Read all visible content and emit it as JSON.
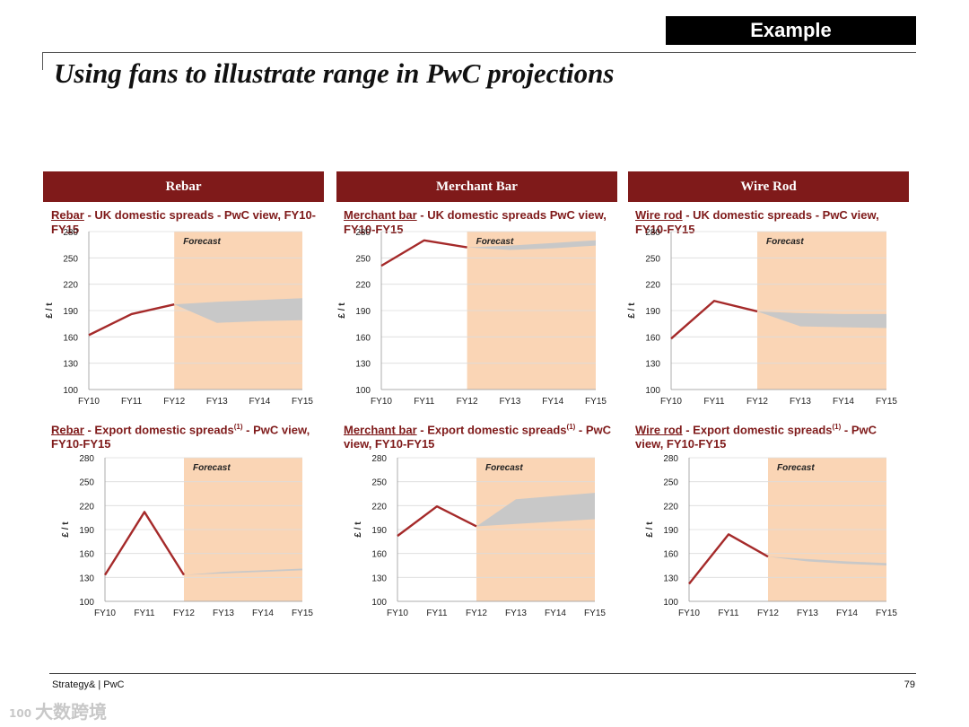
{
  "badge": "Example",
  "title": "Using fans to illustrate range in PwC projections",
  "panels": [
    {
      "header": "Rebar"
    },
    {
      "header": "Merchant Bar"
    },
    {
      "header": "Wire Rod"
    }
  ],
  "footer": {
    "left": "Strategy& | PwC",
    "page": "79"
  },
  "watermark": {
    "logo": "100",
    "text": "大数跨境"
  },
  "colors": {
    "header_bg": "#7f1a1a",
    "line": "#a52a2a",
    "forecast_bg": "#fad5b5",
    "fan": "#c8c8c8"
  },
  "chart_data": [
    {
      "type": "line",
      "title_product": "Rebar",
      "title_rest": " - UK domestic spreads - PwC view, FY10-FY15",
      "title_sup": "",
      "ylabel": "£ / t",
      "forecast_label": "Forecast",
      "categories": [
        "FY10",
        "FY11",
        "FY12",
        "FY13",
        "FY14",
        "FY15"
      ],
      "yticks": [
        100,
        130,
        160,
        190,
        220,
        250,
        280
      ],
      "ylim": [
        100,
        280
      ],
      "actual": [
        162,
        186,
        197
      ],
      "fan_upper": [
        197,
        200,
        202,
        204
      ],
      "fan_lower": [
        197,
        176,
        178,
        179
      ],
      "forecast_start": 2
    },
    {
      "type": "line",
      "title_product": "Merchant bar",
      "title_rest": " - UK domestic spreads PwC view, FY10-FY15",
      "title_sup": "",
      "ylabel": "£ / t",
      "forecast_label": "Forecast",
      "categories": [
        "FY10",
        "FY11",
        "FY12",
        "FY13",
        "FY14",
        "FY15"
      ],
      "yticks": [
        100,
        130,
        160,
        190,
        220,
        250,
        280
      ],
      "ylim": [
        100,
        280
      ],
      "actual": [
        241,
        270,
        262
      ],
      "fan_upper": [
        262,
        264,
        267,
        270
      ],
      "fan_lower": [
        262,
        259,
        261,
        264
      ],
      "forecast_start": 2
    },
    {
      "type": "line",
      "title_product": "Wire rod",
      "title_rest": " - UK domestic spreads - PwC view, FY10-FY15",
      "title_sup": "",
      "ylabel": "£ / t",
      "forecast_label": "Forecast",
      "categories": [
        "FY10",
        "FY11",
        "FY12",
        "FY13",
        "FY14",
        "FY15"
      ],
      "yticks": [
        100,
        130,
        160,
        190,
        220,
        250,
        280
      ],
      "ylim": [
        100,
        280
      ],
      "actual": [
        158,
        201,
        189
      ],
      "fan_upper": [
        189,
        187,
        186,
        186
      ],
      "fan_lower": [
        189,
        172,
        171,
        170
      ],
      "forecast_start": 2
    },
    {
      "type": "line",
      "title_product": "Rebar",
      "title_rest": " - Export domestic spreads",
      "title_sup": "(1)",
      "title_after": " - PwC view, FY10-FY15",
      "ylabel": "£ / t",
      "forecast_label": "Forecast",
      "categories": [
        "FY10",
        "FY11",
        "FY12",
        "FY13",
        "FY14",
        "FY15"
      ],
      "yticks": [
        100,
        130,
        160,
        190,
        220,
        250,
        280
      ],
      "ylim": [
        100,
        280
      ],
      "actual": [
        133,
        212,
        133
      ],
      "fan_upper": [
        133,
        137,
        139,
        141
      ],
      "fan_lower": [
        133,
        135,
        137,
        139
      ],
      "forecast_start": 2
    },
    {
      "type": "line",
      "title_product": "Merchant bar",
      "title_rest": " - Export domestic spreads",
      "title_sup": "(1)",
      "title_after": " - PwC view, FY10-FY15",
      "ylabel": "£ / t",
      "forecast_label": "Forecast",
      "categories": [
        "FY10",
        "FY11",
        "FY12",
        "FY13",
        "FY14",
        "FY15"
      ],
      "yticks": [
        100,
        130,
        160,
        190,
        220,
        250,
        280
      ],
      "ylim": [
        100,
        280
      ],
      "actual": [
        182,
        219,
        194
      ],
      "fan_upper": [
        194,
        228,
        232,
        236
      ],
      "fan_lower": [
        194,
        197,
        200,
        203
      ],
      "forecast_start": 2
    },
    {
      "type": "line",
      "title_product": "Wire rod",
      "title_rest": " - Export domestic spreads",
      "title_sup": "(1)",
      "title_after": " - PwC view, FY10-FY15",
      "ylabel": "£ / t",
      "forecast_label": "Forecast",
      "categories": [
        "FY10",
        "FY11",
        "FY12",
        "FY13",
        "FY14",
        "FY15"
      ],
      "yticks": [
        100,
        130,
        160,
        190,
        220,
        250,
        280
      ],
      "ylim": [
        100,
        280
      ],
      "actual": [
        122,
        184,
        156
      ],
      "fan_upper": [
        156,
        153,
        150,
        148
      ],
      "fan_lower": [
        156,
        150,
        147,
        145
      ],
      "forecast_start": 2
    }
  ]
}
